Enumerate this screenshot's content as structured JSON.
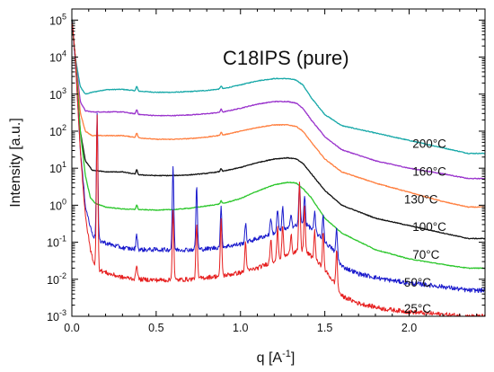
{
  "chart_data": {
    "type": "line",
    "title": "C18IPS (pure)",
    "xlabel": "q [A",
    "xlabel_sup": "-1",
    "xlabel_end": "]",
    "ylabel": "Intensity [a.u.]",
    "xlim": [
      0.0,
      2.45
    ],
    "ylim_log10": [
      -3,
      5.3
    ],
    "yscale": "log",
    "grid": false,
    "xticks": [
      {
        "value": 0.0,
        "label": "0.0"
      },
      {
        "value": 0.5,
        "label": "0.5"
      },
      {
        "value": 1.0,
        "label": "1.0"
      },
      {
        "value": 1.5,
        "label": "1.5"
      },
      {
        "value": 2.0,
        "label": "2.0"
      }
    ],
    "yticks": [
      {
        "exp": -3,
        "base": "10",
        "sup": "-3"
      },
      {
        "exp": -2,
        "base": "10",
        "sup": "-2"
      },
      {
        "exp": -1,
        "base": "10",
        "sup": "-1"
      },
      {
        "exp": 0,
        "base": "10",
        "sup": "0"
      },
      {
        "exp": 1,
        "base": "10",
        "sup": "1"
      },
      {
        "exp": 2,
        "base": "10",
        "sup": "2"
      },
      {
        "exp": 3,
        "base": "10",
        "sup": "3"
      },
      {
        "exp": 4,
        "base": "10",
        "sup": "4"
      },
      {
        "exp": 5,
        "base": "10",
        "sup": "5"
      }
    ],
    "series": [
      {
        "name": "200°C",
        "color": "#17a8a8",
        "offset": 3.0,
        "label_at": [
          2.02,
          1.55
        ],
        "points": [
          [
            0.0,
            5.0
          ],
          [
            0.02,
            4.0
          ],
          [
            0.05,
            3.2
          ],
          [
            0.08,
            3.0
          ],
          [
            0.12,
            3.05
          ],
          [
            0.2,
            3.12
          ],
          [
            0.3,
            3.13
          ],
          [
            0.4,
            3.08
          ],
          [
            0.5,
            3.05
          ],
          [
            0.6,
            3.05
          ],
          [
            0.7,
            3.07
          ],
          [
            0.8,
            3.1
          ],
          [
            0.9,
            3.15
          ],
          [
            1.0,
            3.25
          ],
          [
            1.1,
            3.36
          ],
          [
            1.2,
            3.42
          ],
          [
            1.28,
            3.42
          ],
          [
            1.33,
            3.38
          ],
          [
            1.37,
            3.25
          ],
          [
            1.42,
            2.9
          ],
          [
            1.5,
            2.45
          ],
          [
            1.6,
            2.15
          ],
          [
            1.8,
            1.95
          ],
          [
            2.0,
            1.75
          ],
          [
            2.2,
            1.55
          ],
          [
            2.35,
            1.4
          ],
          [
            2.42,
            1.4
          ]
        ],
        "peaks": [
          [
            0.385,
            0.12
          ],
          [
            0.885,
            0.08
          ]
        ]
      },
      {
        "name": "160°C",
        "color": "#9932cc",
        "offset": 2.0,
        "label_at": [
          2.02,
          0.8
        ],
        "points": [
          [
            0.0,
            5.0
          ],
          [
            0.02,
            4.0
          ],
          [
            0.05,
            2.8
          ],
          [
            0.08,
            2.55
          ],
          [
            0.12,
            2.52
          ],
          [
            0.2,
            2.52
          ],
          [
            0.3,
            2.52
          ],
          [
            0.4,
            2.45
          ],
          [
            0.5,
            2.42
          ],
          [
            0.6,
            2.42
          ],
          [
            0.7,
            2.44
          ],
          [
            0.8,
            2.47
          ],
          [
            0.9,
            2.52
          ],
          [
            1.0,
            2.62
          ],
          [
            1.1,
            2.73
          ],
          [
            1.2,
            2.8
          ],
          [
            1.28,
            2.8
          ],
          [
            1.33,
            2.76
          ],
          [
            1.37,
            2.62
          ],
          [
            1.42,
            2.3
          ],
          [
            1.5,
            1.85
          ],
          [
            1.6,
            1.5
          ],
          [
            1.8,
            1.2
          ],
          [
            2.0,
            1.0
          ],
          [
            2.2,
            0.85
          ],
          [
            2.35,
            0.72
          ],
          [
            2.42,
            0.72
          ]
        ],
        "peaks": [
          [
            0.385,
            0.12
          ],
          [
            0.885,
            0.08
          ]
        ]
      },
      {
        "name": "130°C",
        "color": "#ff7f3f",
        "offset": 1.0,
        "label_at": [
          1.97,
          0.05
        ],
        "points": [
          [
            0.0,
            5.0
          ],
          [
            0.02,
            4.0
          ],
          [
            0.05,
            2.5
          ],
          [
            0.08,
            2.0
          ],
          [
            0.12,
            1.88
          ],
          [
            0.2,
            1.88
          ],
          [
            0.3,
            1.88
          ],
          [
            0.4,
            1.82
          ],
          [
            0.5,
            1.78
          ],
          [
            0.6,
            1.78
          ],
          [
            0.7,
            1.8
          ],
          [
            0.8,
            1.84
          ],
          [
            0.9,
            1.9
          ],
          [
            1.0,
            2.0
          ],
          [
            1.1,
            2.1
          ],
          [
            1.2,
            2.17
          ],
          [
            1.28,
            2.17
          ],
          [
            1.33,
            2.13
          ],
          [
            1.37,
            2.0
          ],
          [
            1.42,
            1.7
          ],
          [
            1.5,
            1.25
          ],
          [
            1.6,
            0.9
          ],
          [
            1.8,
            0.6
          ],
          [
            2.0,
            0.35
          ],
          [
            2.2,
            0.1
          ],
          [
            2.35,
            -0.05
          ],
          [
            2.42,
            -0.05
          ]
        ],
        "peaks": [
          [
            0.385,
            0.12
          ],
          [
            0.885,
            0.08
          ]
        ]
      },
      {
        "name": "100°C",
        "color": "#111111",
        "offset": 0.0,
        "label_at": [
          2.02,
          -0.7
        ],
        "points": [
          [
            0.0,
            5.0
          ],
          [
            0.02,
            4.0
          ],
          [
            0.05,
            2.0
          ],
          [
            0.08,
            1.2
          ],
          [
            0.12,
            0.95
          ],
          [
            0.2,
            0.9
          ],
          [
            0.3,
            0.9
          ],
          [
            0.4,
            0.82
          ],
          [
            0.5,
            0.8
          ],
          [
            0.6,
            0.8
          ],
          [
            0.7,
            0.82
          ],
          [
            0.8,
            0.86
          ],
          [
            0.9,
            0.92
          ],
          [
            1.0,
            1.02
          ],
          [
            1.1,
            1.15
          ],
          [
            1.2,
            1.25
          ],
          [
            1.28,
            1.28
          ],
          [
            1.33,
            1.25
          ],
          [
            1.37,
            1.13
          ],
          [
            1.42,
            0.85
          ],
          [
            1.5,
            0.4
          ],
          [
            1.6,
            0.0
          ],
          [
            1.8,
            -0.35
          ],
          [
            2.0,
            -0.55
          ],
          [
            2.2,
            -0.75
          ],
          [
            2.35,
            -0.9
          ],
          [
            2.42,
            -0.9
          ]
        ],
        "peaks": [
          [
            0.385,
            0.12
          ],
          [
            0.885,
            0.08
          ]
        ]
      },
      {
        "name": "70°C",
        "color": "#2dc72d",
        "offset": -1.0,
        "label_at": [
          2.02,
          -1.45
        ],
        "points": [
          [
            0.0,
            5.0
          ],
          [
            0.02,
            4.0
          ],
          [
            0.05,
            2.0
          ],
          [
            0.08,
            0.8
          ],
          [
            0.11,
            0.2
          ],
          [
            0.14,
            0.05
          ],
          [
            0.2,
            -0.05
          ],
          [
            0.3,
            -0.1
          ],
          [
            0.4,
            -0.12
          ],
          [
            0.5,
            -0.13
          ],
          [
            0.6,
            -0.12
          ],
          [
            0.7,
            -0.08
          ],
          [
            0.8,
            -0.02
          ],
          [
            0.9,
            0.05
          ],
          [
            1.0,
            0.18
          ],
          [
            1.1,
            0.38
          ],
          [
            1.2,
            0.55
          ],
          [
            1.28,
            0.62
          ],
          [
            1.33,
            0.6
          ],
          [
            1.37,
            0.45
          ],
          [
            1.42,
            0.2
          ],
          [
            1.5,
            -0.35
          ],
          [
            1.6,
            -0.75
          ],
          [
            1.8,
            -1.2
          ],
          [
            2.0,
            -1.45
          ],
          [
            2.2,
            -1.6
          ],
          [
            2.35,
            -1.7
          ],
          [
            2.42,
            -1.7
          ]
        ],
        "peaks": [
          [
            0.385,
            0.12
          ],
          [
            0.885,
            0.08
          ]
        ]
      },
      {
        "name": "50°C",
        "color": "#1a1acc",
        "offset": -2.0,
        "label_at": [
          1.97,
          -2.2
        ],
        "points": [
          [
            0.0,
            5.0
          ],
          [
            0.02,
            4.0
          ],
          [
            0.05,
            1.5
          ],
          [
            0.08,
            0.0
          ],
          [
            0.11,
            -0.6
          ],
          [
            0.13,
            -0.85
          ],
          [
            0.16,
            -0.95
          ],
          [
            0.22,
            -1.05
          ],
          [
            0.3,
            -1.15
          ],
          [
            0.4,
            -1.2
          ],
          [
            0.5,
            -1.2
          ],
          [
            0.6,
            -1.2
          ],
          [
            0.7,
            -1.2
          ],
          [
            0.8,
            -1.18
          ],
          [
            0.9,
            -1.12
          ],
          [
            1.0,
            -1.05
          ],
          [
            1.1,
            -0.9
          ],
          [
            1.2,
            -0.75
          ],
          [
            1.3,
            -0.6
          ],
          [
            1.36,
            -0.5
          ],
          [
            1.4,
            -0.55
          ],
          [
            1.45,
            -0.75
          ],
          [
            1.5,
            -1.0
          ],
          [
            1.55,
            -1.2
          ],
          [
            1.6,
            -1.65
          ],
          [
            1.7,
            -1.85
          ],
          [
            1.85,
            -2.0
          ],
          [
            2.0,
            -2.1
          ],
          [
            2.2,
            -2.2
          ],
          [
            2.35,
            -2.3
          ],
          [
            2.42,
            -2.3
          ]
        ],
        "peaks": [
          [
            0.15,
            3.4
          ],
          [
            0.385,
            0.4
          ],
          [
            0.6,
            2.25
          ],
          [
            0.74,
            1.7
          ],
          [
            0.885,
            1.05
          ],
          [
            1.03,
            0.5
          ],
          [
            1.18,
            0.45
          ],
          [
            1.22,
            0.6
          ],
          [
            1.25,
            0.6
          ],
          [
            1.3,
            0.4
          ],
          [
            1.35,
            1.1
          ],
          [
            1.38,
            0.8
          ],
          [
            1.44,
            0.5
          ],
          [
            1.49,
            0.7
          ],
          [
            1.57,
            0.75
          ]
        ]
      },
      {
        "name": "25°C",
        "color": "#e61e1e",
        "offset": -3.0,
        "label_at": [
          1.97,
          -2.9
        ],
        "points": [
          [
            0.0,
            5.0
          ],
          [
            0.02,
            4.0
          ],
          [
            0.05,
            1.5
          ],
          [
            0.08,
            -0.3
          ],
          [
            0.11,
            -1.2
          ],
          [
            0.13,
            -1.55
          ],
          [
            0.16,
            -1.75
          ],
          [
            0.22,
            -1.85
          ],
          [
            0.3,
            -1.95
          ],
          [
            0.4,
            -2.0
          ],
          [
            0.5,
            -2.02
          ],
          [
            0.6,
            -2.02
          ],
          [
            0.7,
            -2.0
          ],
          [
            0.8,
            -1.95
          ],
          [
            0.9,
            -1.9
          ],
          [
            1.0,
            -1.82
          ],
          [
            1.1,
            -1.7
          ],
          [
            1.2,
            -1.5
          ],
          [
            1.3,
            -1.3
          ],
          [
            1.36,
            -1.2
          ],
          [
            1.4,
            -1.3
          ],
          [
            1.45,
            -1.5
          ],
          [
            1.5,
            -1.75
          ],
          [
            1.55,
            -2.05
          ],
          [
            1.6,
            -2.45
          ],
          [
            1.7,
            -2.65
          ],
          [
            1.85,
            -2.8
          ],
          [
            2.0,
            -2.88
          ],
          [
            2.2,
            -2.95
          ],
          [
            2.35,
            -3.0
          ],
          [
            2.42,
            -3.0
          ]
        ],
        "peaks": [
          [
            0.15,
            4.1
          ],
          [
            0.385,
            0.4
          ],
          [
            0.6,
            1.9
          ],
          [
            0.74,
            1.5
          ],
          [
            0.885,
            1.5
          ],
          [
            1.03,
            0.8
          ],
          [
            1.18,
            0.65
          ],
          [
            1.22,
            0.85
          ],
          [
            1.25,
            0.85
          ],
          [
            1.3,
            0.55
          ],
          [
            1.35,
            1.85
          ],
          [
            1.38,
            1.2
          ],
          [
            1.44,
            0.75
          ],
          [
            1.49,
            0.95
          ],
          [
            1.57,
            1.0
          ]
        ]
      }
    ]
  }
}
